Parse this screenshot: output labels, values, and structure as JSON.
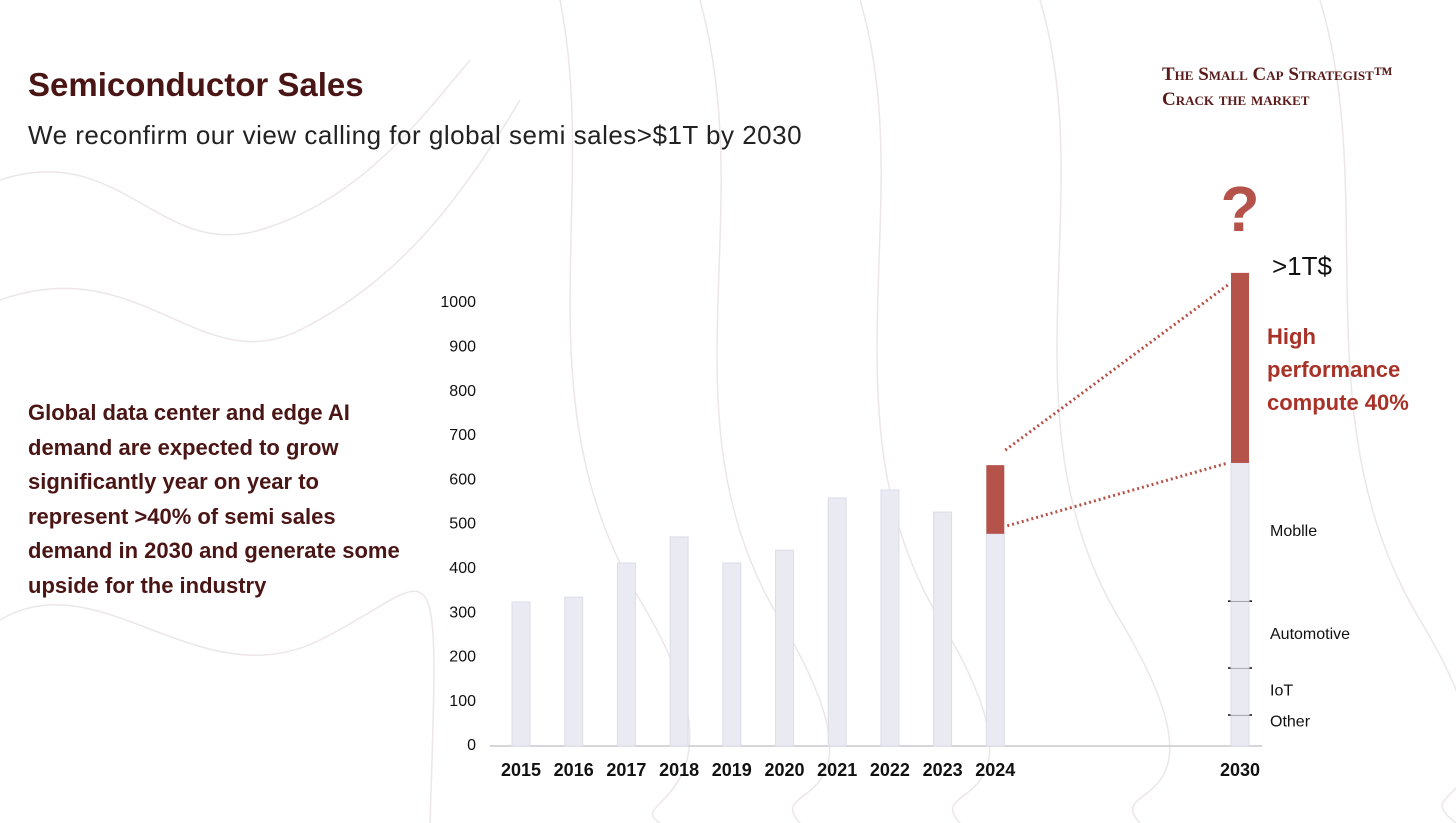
{
  "header": {
    "title": "Semiconductor Sales",
    "subtitle": "We reconfirm our view calling for global semi sales>$1T by 2030",
    "brand": [
      "The Small Cap Strategist™",
      "Crack the market"
    ]
  },
  "body": {
    "text": "Global data center and edge AI demand are expected to grow significantly year on year to represent >40% of semi sales demand in 2030 and generate some upside for the industry"
  },
  "chart_data": {
    "type": "bar",
    "categories": [
      "2015",
      "2016",
      "2017",
      "2018",
      "2019",
      "2020",
      "2021",
      "2022",
      "2023",
      "2024",
      "2030"
    ],
    "series": [
      {
        "color": "#e9eaf2",
        "values": [
          325,
          336,
          413,
          472,
          413,
          442,
          560,
          578,
          528,
          479,
          null
        ]
      },
      {
        "color": "#b5524a",
        "values": [
          null,
          null,
          null,
          null,
          null,
          null,
          null,
          null,
          null,
          155,
          null
        ]
      }
    ],
    "segments_2030": [
      {
        "name": "Other",
        "value": 70,
        "color": "#e9eaf2"
      },
      {
        "name": "IoT",
        "value": 106,
        "color": "#e9eaf2"
      },
      {
        "name": "Automotive",
        "value": 151,
        "color": "#e9eaf2"
      },
      {
        "name": "Moblle",
        "value": 312,
        "color": "#e9eaf2"
      },
      {
        "name": "High performance compute 40%",
        "value": 429,
        "color": "#b5524a"
      }
    ],
    "annotations": [
      "?",
      ">1T$"
    ],
    "ylim": [
      0,
      1000
    ],
    "yticks": [
      0,
      100,
      200,
      300,
      400,
      500,
      600,
      700,
      800,
      900,
      1000
    ],
    "grid": false
  }
}
